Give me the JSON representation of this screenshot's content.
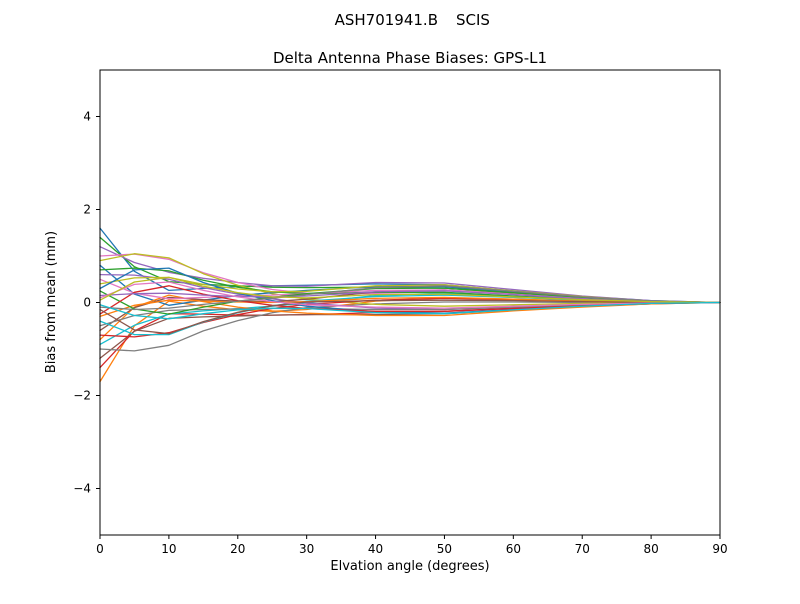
{
  "suptitle": {
    "left": "ASH701941.B",
    "right": "SCIS"
  },
  "chart_data": {
    "type": "line",
    "title": "Delta Antenna Phase Biases: GPS-L1",
    "xlabel": "Elvation angle (degrees)",
    "ylabel": "Bias from mean (mm)",
    "xlim": [
      0,
      90
    ],
    "ylim": [
      -5,
      5
    ],
    "x_ticks": [
      0,
      10,
      20,
      30,
      40,
      50,
      60,
      70,
      80,
      90
    ],
    "y_ticks": [
      -4,
      -2,
      0,
      2,
      4
    ],
    "grid": false,
    "legend": "none",
    "x": [
      0,
      5,
      10,
      15,
      20,
      25,
      30,
      40,
      50,
      60,
      70,
      80,
      90
    ],
    "palette": [
      "#1f77b4",
      "#ff7f0e",
      "#2ca02c",
      "#d62728",
      "#9467bd",
      "#8c564b",
      "#e377c2",
      "#7f7f7f",
      "#bcbd22",
      "#17becf"
    ],
    "series": [
      {
        "id": "L01",
        "y": [
          1.6,
          0.67,
          0.26,
          0.3,
          0.34,
          0.36,
          0.37,
          0.4,
          0.38,
          0.25,
          0.13,
          0.04,
          0
        ]
      },
      {
        "id": "L02",
        "y": [
          -1.7,
          -0.5,
          0.03,
          -0.08,
          -0.16,
          -0.19,
          -0.15,
          0.03,
          0.1,
          0.07,
          0.03,
          0,
          0
        ]
      },
      {
        "id": "L03",
        "y": [
          1.4,
          0.77,
          0.45,
          0.39,
          0.36,
          0.33,
          0.32,
          0.33,
          0.31,
          0.2,
          0.11,
          0.03,
          0
        ]
      },
      {
        "id": "L04",
        "y": [
          -1.4,
          -0.61,
          -0.24,
          -0.25,
          -0.27,
          -0.27,
          -0.26,
          -0.22,
          -0.19,
          -0.12,
          -0.07,
          -0.02,
          0
        ]
      },
      {
        "id": "L05",
        "y": [
          1.2,
          0.86,
          0.65,
          0.52,
          0.43,
          0.36,
          0.35,
          0.43,
          0.42,
          0.28,
          0.14,
          0.04,
          0
        ]
      },
      {
        "id": "L06",
        "y": [
          -1.2,
          -0.62,
          -0.34,
          -0.31,
          -0.29,
          -0.27,
          -0.26,
          -0.26,
          -0.24,
          -0.16,
          -0.08,
          -0.03,
          0
        ]
      },
      {
        "id": "L07",
        "y": [
          1.0,
          1.04,
          0.93,
          0.64,
          0.43,
          0.28,
          0.2,
          0.19,
          0.17,
          0.11,
          0.06,
          0.02,
          0
        ]
      },
      {
        "id": "L08",
        "y": [
          -1.0,
          -1.04,
          -0.92,
          -0.61,
          -0.39,
          -0.22,
          -0.11,
          -0.03,
          0.01,
          0.01,
          0,
          0,
          0
        ]
      },
      {
        "id": "L09",
        "y": [
          0.9,
          1.05,
          0.96,
          0.62,
          0.37,
          0.19,
          0.07,
          -0.04,
          -0.08,
          -0.05,
          -0.02,
          0,
          0
        ]
      },
      {
        "id": "L10",
        "y": [
          -0.9,
          -0.49,
          -0.25,
          -0.18,
          -0.13,
          -0.08,
          -0.01,
          0.15,
          0.2,
          0.13,
          0.06,
          0.01,
          0
        ]
      },
      {
        "id": "L11",
        "y": [
          0.8,
          0.18,
          -0.06,
          0.05,
          0.15,
          0.21,
          0.26,
          0.34,
          0.34,
          0.22,
          0.12,
          0.03,
          0
        ]
      },
      {
        "id": "L12",
        "y": [
          -0.8,
          -0.1,
          0.16,
          0.02,
          -0.1,
          -0.18,
          -0.23,
          -0.28,
          -0.28,
          -0.18,
          -0.1,
          -0.03,
          0
        ]
      },
      {
        "id": "L13",
        "y": [
          0.7,
          0.74,
          0.68,
          0.48,
          0.33,
          0.23,
          0.19,
          0.22,
          0.22,
          0.14,
          0.07,
          0.02,
          0
        ]
      },
      {
        "id": "L14",
        "y": [
          -0.7,
          -0.74,
          -0.65,
          -0.43,
          -0.26,
          -0.13,
          -0.04,
          0.05,
          0.09,
          0.06,
          0.03,
          0,
          0
        ]
      },
      {
        "id": "L15",
        "y": [
          0.6,
          0.59,
          0.5,
          0.32,
          0.18,
          0.08,
          -0.01,
          -0.12,
          -0.15,
          -0.1,
          -0.05,
          -0.01,
          0
        ]
      },
      {
        "id": "L16",
        "y": [
          -0.6,
          -0.11,
          0.11,
          0.06,
          0.03,
          0.02,
          0.07,
          0.23,
          0.27,
          0.18,
          0.09,
          0.02,
          0
        ]
      },
      {
        "id": "L17",
        "y": [
          0.5,
          0.2,
          0.08,
          0.11,
          0.14,
          0.16,
          0.19,
          0.26,
          0.27,
          0.18,
          0.09,
          0.03,
          0
        ]
      },
      {
        "id": "L18",
        "y": [
          -0.5,
          -0.28,
          -0.17,
          -0.15,
          -0.14,
          -0.13,
          -0.13,
          -0.15,
          -0.15,
          -0.1,
          -0.05,
          -0.02,
          0
        ]
      },
      {
        "id": "L19",
        "y": [
          0.4,
          0.53,
          0.54,
          0.39,
          0.29,
          0.23,
          0.24,
          0.36,
          0.38,
          0.25,
          0.13,
          0.03,
          0
        ]
      },
      {
        "id": "L20",
        "y": [
          -0.4,
          -0.69,
          -0.69,
          -0.42,
          -0.22,
          -0.07,
          0.03,
          0.13,
          0.16,
          0.11,
          0.05,
          0.01,
          0
        ]
      },
      {
        "id": "L21",
        "y": [
          0.3,
          0.7,
          0.74,
          0.43,
          0.2,
          0.04,
          -0.08,
          -0.2,
          -0.23,
          -0.15,
          -0.07,
          -0.02,
          0
        ]
      },
      {
        "id": "L22",
        "y": [
          -0.3,
          -0.06,
          0.05,
          0.03,
          0.01,
          0,
          0.02,
          0.09,
          0.11,
          0.07,
          0.03,
          0.01,
          0
        ]
      },
      {
        "id": "L23",
        "y": [
          0.25,
          -0.14,
          -0.25,
          -0.1,
          0.03,
          0.11,
          0.19,
          0.3,
          0.31,
          0.21,
          0.11,
          0.03,
          0
        ]
      },
      {
        "id": "L24",
        "y": [
          -0.25,
          0.22,
          0.36,
          0.18,
          0.04,
          -0.06,
          -0.13,
          -0.19,
          -0.19,
          -0.13,
          -0.07,
          -0.02,
          0
        ]
      },
      {
        "id": "L25",
        "y": [
          0.15,
          0.19,
          0.2,
          0.16,
          0.13,
          0.12,
          0.14,
          0.23,
          0.25,
          0.17,
          0.08,
          0.02,
          0
        ]
      },
      {
        "id": "L26",
        "y": [
          -0.15,
          -0.59,
          -0.67,
          -0.41,
          -0.21,
          -0.07,
          0.01,
          0.04,
          0.05,
          0.04,
          0.02,
          0,
          0
        ]
      },
      {
        "id": "L27",
        "y": [
          0.1,
          0.39,
          0.44,
          0.26,
          0.12,
          0.02,
          -0.05,
          -0.1,
          -0.12,
          -0.08,
          -0.04,
          -0.01,
          0
        ]
      },
      {
        "id": "L28",
        "y": [
          -0.1,
          -0.15,
          -0.12,
          -0.04,
          0.03,
          0.09,
          0.17,
          0.32,
          0.36,
          0.24,
          0.12,
          0.03,
          0
        ]
      },
      {
        "id": "L29",
        "y": [
          0.05,
          0.44,
          0.54,
          0.35,
          0.21,
          0.12,
          0.1,
          0.17,
          0.18,
          0.12,
          0.06,
          0.02,
          0
        ]
      },
      {
        "id": "L30",
        "y": [
          -0.05,
          -0.28,
          -0.35,
          -0.24,
          -0.16,
          -0.12,
          -0.13,
          -0.22,
          -0.24,
          -0.16,
          -0.08,
          -0.02,
          0
        ]
      }
    ]
  }
}
